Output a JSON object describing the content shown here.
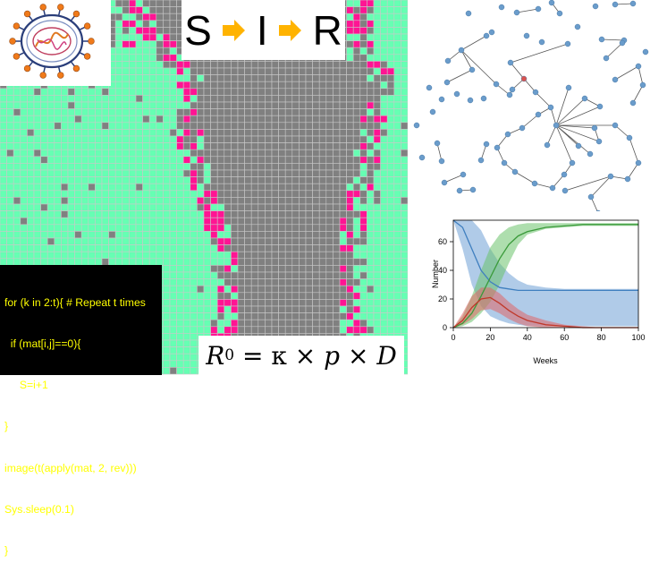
{
  "colors": {
    "susceptible": "#66ffb3",
    "infected": "#ff1493",
    "recovered": "#808080",
    "gridline": "#c8c8c8",
    "arrow": "#ffb300",
    "code_bg": "#000000",
    "code_text": "#ffff00",
    "node": "#6a9ccb",
    "infected_node": "#d9534f",
    "edge": "#555555"
  },
  "sir": {
    "s": "S",
    "i": "I",
    "r": "R"
  },
  "code": {
    "lines": [
      "for (k in 2:t){ # Repeat t times",
      "  if (mat[i,j]==0){",
      "     S=i+1",
      "}",
      "image(t(apply(mat, 2, rev)))",
      "Sys.sleep(0.1)",
      "}"
    ]
  },
  "formula": {
    "lhs": "R",
    "lhs_sub": "0",
    "eq": " = ",
    "k": "κ",
    "times": " × ",
    "p": "p",
    "d": "D"
  },
  "icons": [
    "virus-icon",
    "arrow-right-icon",
    "network-graph"
  ],
  "chart_data": {
    "type": "line",
    "x": [
      0,
      5,
      10,
      15,
      20,
      25,
      30,
      35,
      40,
      50,
      60,
      70,
      80,
      90,
      100
    ],
    "xlabel": "Weeks",
    "ylabel": "Number",
    "xticks": [
      "0",
      "20",
      "40",
      "60",
      "80",
      "100"
    ],
    "yticks": [
      "0",
      "20",
      "40",
      "60"
    ],
    "xlim": [
      0,
      100
    ],
    "ylim": [
      0,
      75
    ],
    "grid": false,
    "series": [
      {
        "color": "#3f7fbf",
        "band": "#6fa0d6",
        "values": [
          75,
          70,
          55,
          40,
          32,
          28,
          27,
          26,
          26,
          26,
          26,
          26,
          26,
          26,
          26
        ],
        "lower": [
          75,
          55,
          30,
          15,
          8,
          5,
          3,
          2,
          1,
          1,
          1,
          1,
          1,
          1,
          1
        ],
        "upper": [
          75,
          75,
          75,
          68,
          55,
          45,
          38,
          33,
          30,
          28,
          27,
          27,
          27,
          27,
          27
        ]
      },
      {
        "color": "#3a9a3a",
        "band": "#6cc36c",
        "values": [
          0,
          3,
          10,
          22,
          35,
          48,
          58,
          64,
          67,
          70,
          71,
          72,
          72,
          72,
          72
        ],
        "lower": [
          0,
          1,
          4,
          10,
          18,
          30,
          45,
          58,
          65,
          69,
          70,
          71,
          71,
          71,
          71
        ],
        "upper": [
          0,
          8,
          22,
          40,
          56,
          65,
          70,
          72,
          73,
          73,
          73,
          73,
          73,
          73,
          73
        ]
      },
      {
        "color": "#c0392b",
        "band": "#e06666",
        "values": [
          0,
          5,
          14,
          20,
          21,
          17,
          12,
          8,
          5,
          2,
          1,
          0,
          0,
          0,
          0
        ],
        "lower": [
          0,
          2,
          6,
          12,
          13,
          10,
          6,
          3,
          1,
          0,
          0,
          0,
          0,
          0,
          0
        ],
        "upper": [
          0,
          10,
          22,
          28,
          28,
          24,
          18,
          13,
          9,
          5,
          2,
          1,
          0,
          0,
          0
        ]
      }
    ]
  }
}
